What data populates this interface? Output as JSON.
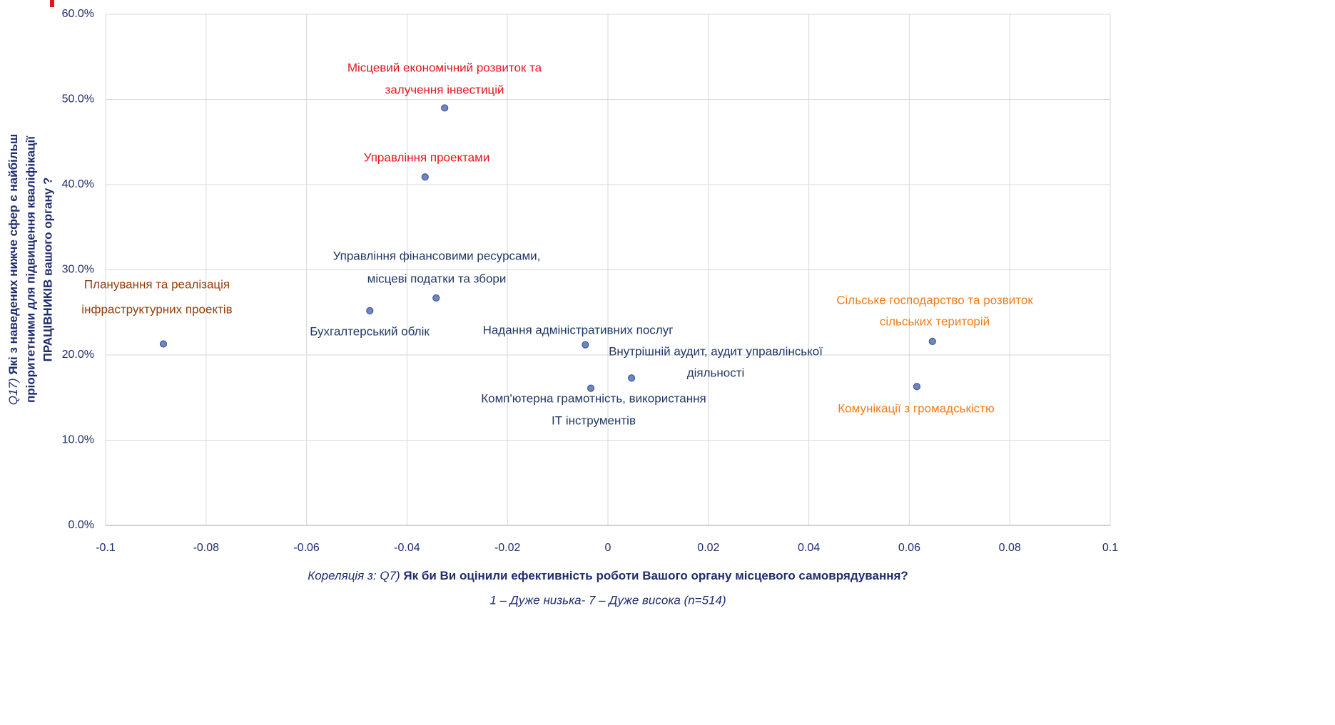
{
  "chart_data": {
    "type": "scatter",
    "x_label": [
      "Кореляція з: Q7) ",
      "Як би Ви оцінили ефективність роботи Вашого органу місцевого самоврядування?"
    ],
    "x_label_note": "1 – Дуже низька- 7 – Дуже висока (n=514)",
    "y_label": [
      [
        "Q17) ",
        "Які з наведених нижче сфер є найбільш"
      ],
      [
        "пріоритетними для підвищення кваліфікації"
      ],
      [
        "ПРАЦІВНИКІВ вашого органу ?"
      ]
    ],
    "xlim": [
      -0.1,
      0.1
    ],
    "xticks": [
      -0.1,
      -0.08,
      -0.06,
      -0.04,
      -0.02,
      0,
      0.02,
      0.04,
      0.06,
      0.08,
      0.1
    ],
    "ylim": [
      0,
      60
    ],
    "yticks": [
      {
        "value": 0,
        "label": "0.0%"
      },
      {
        "value": 10,
        "label": "10.0%"
      },
      {
        "value": 20,
        "label": "20.0%"
      },
      {
        "value": 30,
        "label": "30.0%"
      },
      {
        "value": 40,
        "label": "40.0%"
      },
      {
        "value": 50,
        "label": "50.0%"
      },
      {
        "value": 60,
        "label": "60.0%"
      }
    ],
    "grid": true,
    "marker_color": "#6f86c0",
    "points": [
      {
        "name": [
          "Планування та реалізація",
          "інфраструктурних  проектів"
        ],
        "x": -0.0885,
        "y": 21.3,
        "color": "#943e0b"
      },
      {
        "name": [
          "Бухгалтерський облік"
        ],
        "x": -0.0474,
        "y": 25.2,
        "color": "#203864"
      },
      {
        "name": [
          "Управління фінансовими ресурсами,",
          "місцеві податки та збори"
        ],
        "x": -0.0342,
        "y": 26.7,
        "color": "#203864"
      },
      {
        "name": [
          "Місцевий економічний розвиток та",
          "залучення інвестицій"
        ],
        "x": -0.0325,
        "y": 49.0,
        "color": "#e8141c"
      },
      {
        "name": [
          "Управління проектами"
        ],
        "x": -0.0364,
        "y": 40.9,
        "color": "#e8141c"
      },
      {
        "name": [
          "Надання адміністративних послуг"
        ],
        "x": -0.0045,
        "y": 21.2,
        "color": "#203864"
      },
      {
        "name": [
          "Комп'ютерна грамотність, використання",
          "ІТ інструментів"
        ],
        "x": -0.0034,
        "y": 16.1,
        "color": "#203864"
      },
      {
        "name": [
          "Внутрішній аудит, аудит управлінської",
          "діяльності"
        ],
        "x": 0.0047,
        "y": 17.3,
        "color": "#203864"
      },
      {
        "name": [
          "Сільське господарство та розвиток",
          "сільських територій"
        ],
        "x": 0.0646,
        "y": 21.6,
        "color": "#f07d1a"
      },
      {
        "name": [
          "Комунікації з громадськістю"
        ],
        "x": 0.0615,
        "y": 16.3,
        "color": "#f07d1a"
      }
    ]
  }
}
